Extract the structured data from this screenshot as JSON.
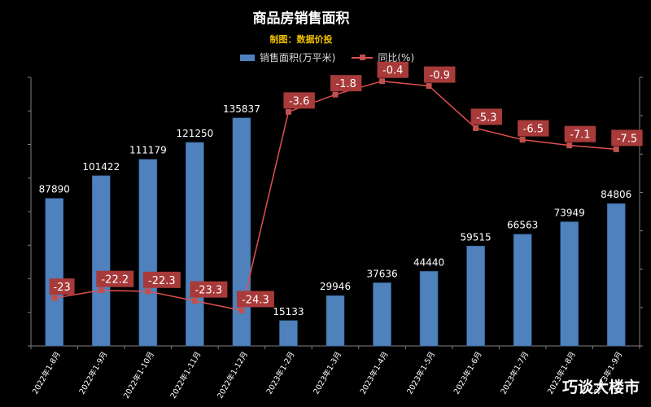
{
  "title": "商品房销售面积",
  "subtitle": "制图：数据价投",
  "watermark": "巧谈大楼市",
  "legend": {
    "bar_label": "销售面积(万平米)",
    "line_label": "同比(%)"
  },
  "colors": {
    "bar": "#4f81bd",
    "line": "#e05050",
    "marker": "#c0504d",
    "yoy_label_bg": "#a83a3a",
    "bar_label": "#ffffff"
  },
  "chart_data": {
    "type": "bar",
    "categories": [
      "2022年1-8月",
      "2022年1-9月",
      "2022年1-10月",
      "2022年1-11月",
      "2022年1-12月",
      "2023年1-2月",
      "2023年1-3月",
      "2023年1-4月",
      "2023年1-5月",
      "2023年1-6月",
      "2023年1-7月",
      "2023年1-8月",
      "2023年1-9月"
    ],
    "series": [
      {
        "name": "销售面积(万平米)",
        "type": "bar",
        "axis": "left",
        "values": [
          87890,
          101422,
          111179,
          121250,
          135837,
          15133,
          29946,
          37636,
          44440,
          59515,
          66563,
          73949,
          84806
        ]
      },
      {
        "name": "同比(%)",
        "type": "line",
        "axis": "right",
        "values": [
          -23,
          -22.2,
          -22.3,
          -23.3,
          -24.3,
          -3.6,
          -1.8,
          -0.4,
          -0.9,
          -5.3,
          -6.5,
          -7.1,
          -7.5
        ]
      }
    ],
    "ylim_left": [
      0,
      160000
    ],
    "ylim_right": [
      -28,
      0
    ],
    "grid": false
  }
}
